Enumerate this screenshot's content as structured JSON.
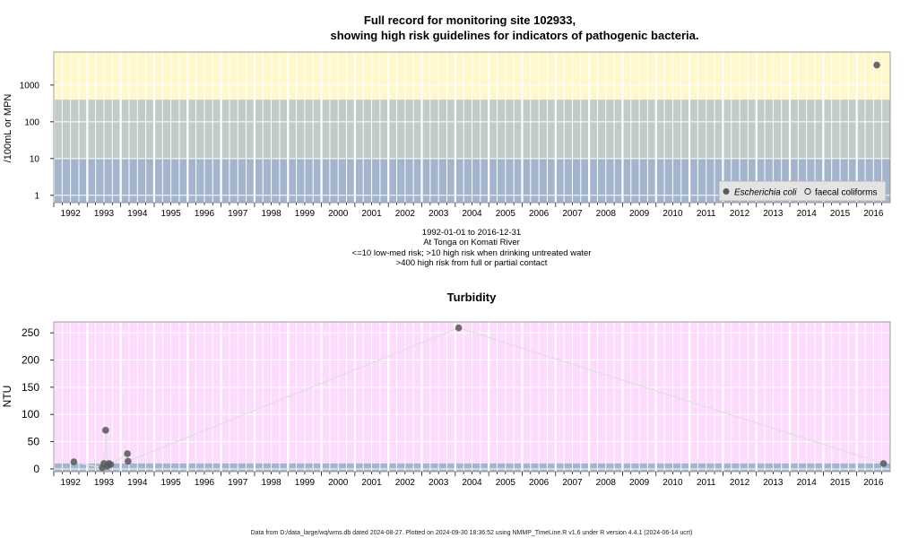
{
  "bacteria": {
    "title_line1": "Full record for monitoring site 102933,",
    "title_line2": "showing high risk guidelines for indicators of pathogenic bacteria.",
    "ylabel": "/100mL or MPN",
    "y_ticks": [
      "1",
      "10",
      "100",
      "1000"
    ],
    "x_ticks": [
      "1992",
      "1993",
      "1994",
      "1995",
      "1996",
      "1997",
      "1998",
      "1999",
      "2000",
      "2001",
      "2002",
      "2003",
      "2004",
      "2005",
      "2006",
      "2007",
      "2008",
      "2009",
      "2010",
      "2011",
      "2012",
      "2013",
      "2014",
      "2015",
      "2016"
    ],
    "legend": {
      "series1": "Escherichia coli",
      "series2": "faecal coliforms",
      "placement": "bottom-right"
    },
    "caption": [
      "1992-01-01 to 2016-12-31",
      "At Tonga on Komati River",
      "<=10 low-med risk; >10 high risk when drinking untreated water",
      ">400 high risk from full or partial contact"
    ],
    "colors": {
      "band_low": "#a3b5cc",
      "band_mid": "#c1cbc7",
      "band_high": "#fff8cc",
      "point": "#5a5a5a"
    }
  },
  "turbidity": {
    "title": "Turbidity",
    "ylabel": "NTU",
    "y_ticks": [
      "0",
      "50",
      "100",
      "150",
      "200",
      "250"
    ],
    "x_ticks": [
      "1992",
      "1993",
      "1994",
      "1995",
      "1996",
      "1997",
      "1998",
      "1999",
      "2000",
      "2001",
      "2002",
      "2003",
      "2004",
      "2005",
      "2006",
      "2007",
      "2008",
      "2009",
      "2010",
      "2011",
      "2012",
      "2013",
      "2014",
      "2015",
      "2016"
    ],
    "colors": {
      "background": "#fcdbfc",
      "band_low": "#a3b5cc",
      "point": "#5a5a5a",
      "line": "#e0e0e0"
    }
  },
  "footer": "Data from D:/data_large/wq/wms.db dated 2024-08-27. Plotted on 2024-09-30 18:36:52 using NMMP_TimeLine.R v1.6 under R version 4.4.1 (2024-06-14 ucrt)",
  "chart_data": [
    {
      "type": "scatter",
      "title": "Full record for monitoring site 102933, showing high risk guidelines for indicators of pathogenic bacteria.",
      "ylabel": "/100mL or MPN",
      "xlim": [
        1992.0,
        2016.99
      ],
      "ylim": [
        1,
        10000
      ],
      "y_scale": "log",
      "grid": true,
      "thresholds": [
        10,
        400
      ],
      "series": [
        {
          "name": "Escherichia coli",
          "x": [
            2016.6
          ],
          "y": [
            3500
          ]
        },
        {
          "name": "faecal coliforms",
          "x": [],
          "y": []
        }
      ]
    },
    {
      "type": "scatter",
      "title": "Turbidity",
      "ylabel": "NTU",
      "xlim": [
        1992.0,
        2016.99
      ],
      "ylim": [
        -5,
        270
      ],
      "grid": true,
      "series": [
        {
          "name": "",
          "x": [
            1992.6,
            1993.45,
            1993.5,
            1993.55,
            1993.6,
            1993.65,
            1993.7,
            1994.2,
            1994.22,
            2004.1,
            2016.8
          ],
          "y": [
            13,
            2,
            10,
            71,
            5,
            10,
            8,
            28,
            14,
            259,
            10
          ]
        }
      ]
    }
  ]
}
